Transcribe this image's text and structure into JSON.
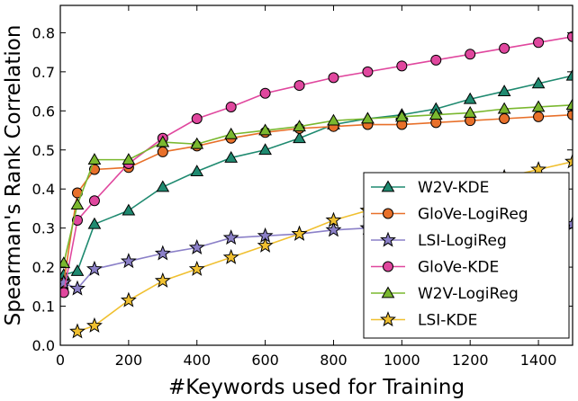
{
  "chart_data": {
    "type": "line",
    "title": "",
    "xlabel": "#Keywords used for Training",
    "ylabel": "Spearman's Rank Correlation",
    "xlim": [
      0,
      1500
    ],
    "ylim": [
      0,
      0.87
    ],
    "xticks": [
      0,
      200,
      400,
      600,
      800,
      1000,
      1200,
      1400
    ],
    "xtick_labels": [
      "0",
      "200",
      "400",
      "600",
      "800",
      "1000",
      "1200",
      "1400"
    ],
    "yticks": [
      0.0,
      0.1,
      0.2,
      0.3,
      0.4,
      0.5,
      0.6,
      0.7,
      0.8
    ],
    "ytick_labels": [
      "0.0",
      "0.1",
      "0.2",
      "0.3",
      "0.4",
      "0.5",
      "0.6",
      "0.7",
      "0.8"
    ],
    "grid": false,
    "legend_position": "lower-right",
    "series": [
      {
        "name": "W2V-KDE",
        "color": "#1f8a70",
        "marker": "triangle",
        "x": [
          10,
          50,
          100,
          200,
          300,
          400,
          500,
          600,
          700,
          800,
          900,
          1000,
          1100,
          1200,
          1300,
          1400,
          1500
        ],
        "y": [
          0.18,
          0.19,
          0.31,
          0.345,
          0.405,
          0.445,
          0.48,
          0.5,
          0.53,
          0.565,
          0.58,
          0.59,
          0.605,
          0.63,
          0.65,
          0.67,
          0.69
        ]
      },
      {
        "name": "GloVe-LogiReg",
        "color": "#e8702a",
        "marker": "circle",
        "x": [
          10,
          50,
          100,
          200,
          300,
          400,
          500,
          600,
          700,
          800,
          900,
          1000,
          1100,
          1200,
          1300,
          1400,
          1500
        ],
        "y": [
          0.16,
          0.39,
          0.45,
          0.455,
          0.495,
          0.51,
          0.53,
          0.545,
          0.555,
          0.56,
          0.565,
          0.565,
          0.57,
          0.575,
          0.58,
          0.585,
          0.59
        ]
      },
      {
        "name": "LSI-LogiReg",
        "color": "#8b80c8",
        "marker": "star",
        "x": [
          10,
          50,
          100,
          200,
          300,
          400,
          500,
          600,
          700,
          800,
          900,
          1000,
          1100,
          1200,
          1300,
          1400,
          1500
        ],
        "y": [
          0.16,
          0.145,
          0.195,
          0.215,
          0.235,
          0.25,
          0.275,
          0.28,
          0.285,
          0.295,
          0.3,
          0.3,
          0.305,
          0.305,
          0.305,
          0.305,
          0.31
        ]
      },
      {
        "name": "GloVe-KDE",
        "color": "#e0479e",
        "marker": "circle",
        "x": [
          10,
          50,
          100,
          200,
          300,
          400,
          500,
          600,
          700,
          800,
          900,
          1000,
          1100,
          1200,
          1300,
          1400,
          1500
        ],
        "y": [
          0.135,
          0.32,
          0.37,
          0.465,
          0.53,
          0.58,
          0.61,
          0.645,
          0.665,
          0.685,
          0.7,
          0.715,
          0.73,
          0.745,
          0.76,
          0.775,
          0.79
        ]
      },
      {
        "name": "W2V-LogiReg",
        "color": "#7ab82f",
        "marker": "triangle",
        "x": [
          10,
          50,
          100,
          200,
          300,
          400,
          500,
          600,
          700,
          800,
          900,
          1000,
          1100,
          1200,
          1300,
          1400,
          1500
        ],
        "y": [
          0.21,
          0.36,
          0.475,
          0.475,
          0.52,
          0.515,
          0.54,
          0.55,
          0.56,
          0.575,
          0.58,
          0.585,
          0.59,
          0.595,
          0.605,
          0.61,
          0.615
        ]
      },
      {
        "name": "LSI-KDE",
        "color": "#f0c030",
        "marker": "star",
        "x": [
          50,
          100,
          200,
          300,
          400,
          500,
          600,
          700,
          800,
          900,
          1000,
          1100,
          1200,
          1300,
          1400,
          1500
        ],
        "y": [
          0.035,
          0.05,
          0.115,
          0.165,
          0.195,
          0.225,
          0.255,
          0.285,
          0.32,
          0.345,
          0.37,
          0.395,
          0.415,
          0.43,
          0.45,
          0.47
        ]
      }
    ]
  }
}
